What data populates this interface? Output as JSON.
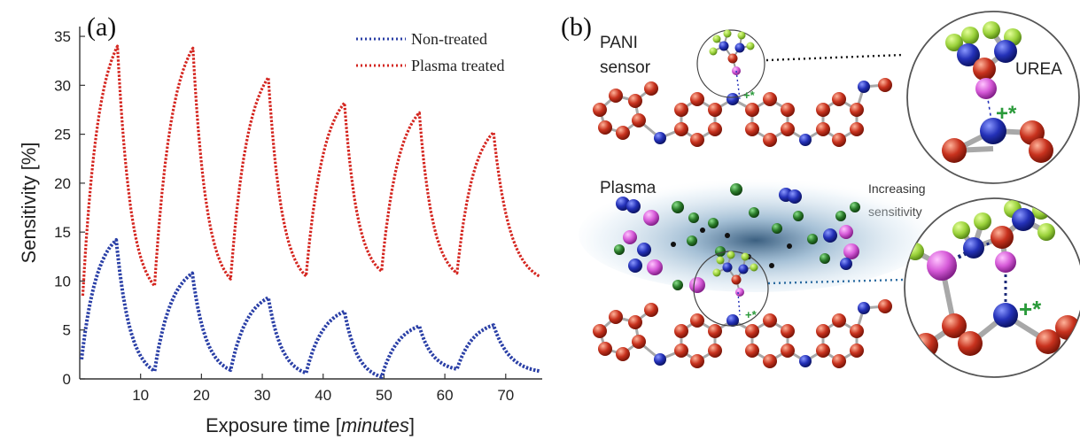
{
  "panel_a": {
    "letter": "(a)",
    "chart_data": {
      "type": "line",
      "xlabel_prefix": "Exposure time [",
      "xlabel_unit": "minutes",
      "xlabel_suffix": "]",
      "ylabel": "Sensitivity [%]",
      "xlim": [
        0,
        76
      ],
      "ylim": [
        0,
        36
      ],
      "xticks": [
        10,
        20,
        30,
        40,
        50,
        60,
        70
      ],
      "yticks": [
        0,
        5,
        10,
        15,
        20,
        25,
        30,
        35
      ],
      "legend_position": "top-right",
      "colors": {
        "non_treated": "#2a3fa6",
        "plasma_treated": "#d4251f"
      },
      "series": [
        {
          "name": "Non-treated",
          "color": "#2a3fa6",
          "cycles": [
            {
              "t0": 0.3,
              "peak_t": 6.0,
              "start": 2.0,
              "peak": 14.2,
              "end_t": 12.3,
              "end": 0.8
            },
            {
              "t0": 12.3,
              "peak_t": 18.5,
              "start": 0.8,
              "peak": 10.8,
              "end_t": 24.8,
              "end": 0.9
            },
            {
              "t0": 24.8,
              "peak_t": 31.0,
              "start": 0.9,
              "peak": 8.3,
              "end_t": 37.2,
              "end": 0.6
            },
            {
              "t0": 37.2,
              "peak_t": 43.5,
              "start": 0.6,
              "peak": 6.9,
              "end_t": 49.6,
              "end": 0.2
            },
            {
              "t0": 49.6,
              "peak_t": 55.8,
              "start": 0.2,
              "peak": 5.4,
              "end_t": 62.0,
              "end": 1.0
            },
            {
              "t0": 62.0,
              "peak_t": 68.0,
              "start": 1.0,
              "peak": 5.5,
              "end_t": 75.5,
              "end": 0.8
            }
          ]
        },
        {
          "name": "Plasma treated",
          "color": "#d4251f",
          "cycles": [
            {
              "t0": 0.5,
              "peak_t": 6.2,
              "start": 8.5,
              "peak": 34.0,
              "end_t": 12.3,
              "end": 9.5
            },
            {
              "t0": 12.3,
              "peak_t": 18.6,
              "start": 9.5,
              "peak": 33.8,
              "end_t": 24.8,
              "end": 10.2
            },
            {
              "t0": 24.8,
              "peak_t": 31.0,
              "start": 10.2,
              "peak": 30.8,
              "end_t": 37.2,
              "end": 10.5
            },
            {
              "t0": 37.2,
              "peak_t": 43.5,
              "start": 10.5,
              "peak": 28.2,
              "end_t": 49.6,
              "end": 11.0
            },
            {
              "t0": 49.6,
              "peak_t": 55.8,
              "start": 11.0,
              "peak": 27.2,
              "end_t": 62.0,
              "end": 10.8
            },
            {
              "t0": 62.0,
              "peak_t": 68.0,
              "start": 10.8,
              "peak": 25.2,
              "end_t": 75.5,
              "end": 10.5
            }
          ]
        }
      ]
    }
  },
  "panel_b": {
    "letter": "(b)",
    "label_pani_line1": "PANI",
    "label_pani_line2": "sensor",
    "label_urea": "UREA",
    "label_plasma": "Plasma",
    "label_increasing_line1": "Increasing",
    "label_increasing_line2": "sensitivity",
    "charge_small": "+*",
    "charge_large": "+*",
    "colors": {
      "carbon": "#c8321e",
      "nitrogen": "#2431b8",
      "hydrogen": "#9ad13a",
      "oxygen": "#e03a1e",
      "radical_magenta": "#d65ad8",
      "radical_green": "#2c7d2c",
      "radical_black": "#111111",
      "plasma_cloud": "#2a5a80",
      "charge": "#2a9a3a"
    }
  }
}
